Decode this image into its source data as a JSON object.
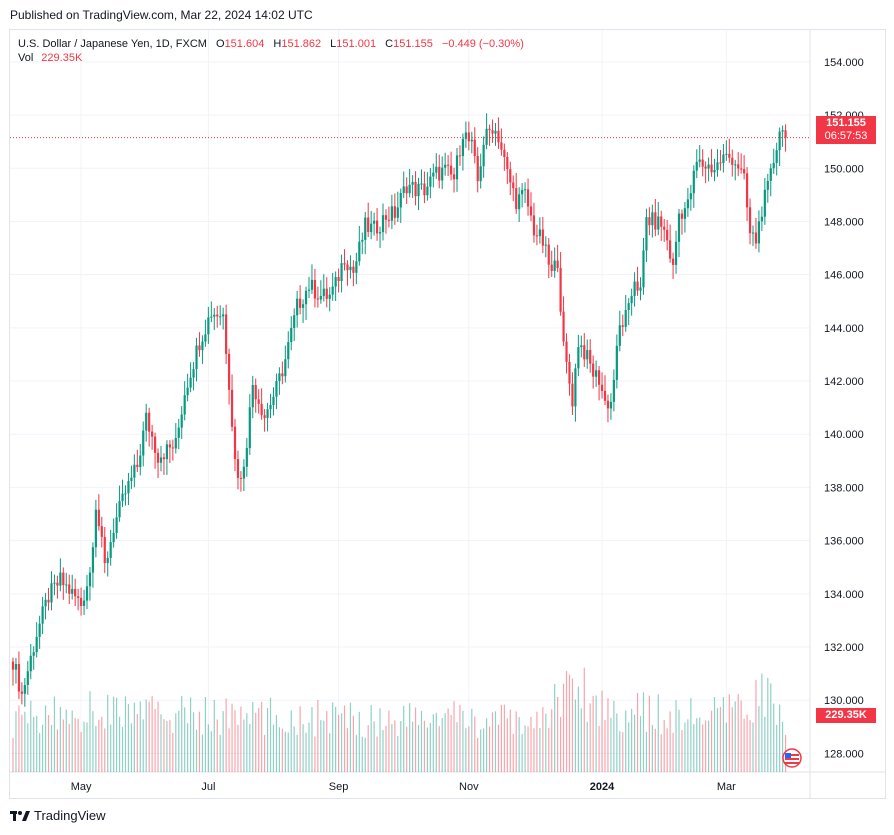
{
  "header": {
    "published": "Published on TradingView.com, Mar 22, 2024 14:02 UTC"
  },
  "legend": {
    "symbol": "U.S. Dollar / Japanese Yen, 1D, FXCM",
    "open_label": "O",
    "open": "151.604",
    "high_label": "H",
    "high": "151.862",
    "low_label": "L",
    "low": "151.001",
    "close_label": "C",
    "close": "151.155",
    "change": "−0.449 (−0.30%)",
    "vol_label": "Vol",
    "vol_value": "229.35K"
  },
  "price_badge": {
    "price": "151.155",
    "countdown": "06:57:53"
  },
  "volume_badge": "229.35K",
  "footer": {
    "brand": "TradingView"
  },
  "colors": {
    "up": "#089981",
    "down": "#f23645",
    "grid": "#f0f3fa",
    "axis_text": "#131722"
  },
  "chart_data": {
    "type": "candlestick",
    "title": "U.S. Dollar / Japanese Yen, 1D, FXCM",
    "ylim": [
      127.3,
      155.2
    ],
    "y_ticks": [
      "154.000",
      "152.000",
      "150.000",
      "148.000",
      "146.000",
      "144.000",
      "142.000",
      "140.000",
      "138.000",
      "136.000",
      "134.000",
      "132.000",
      "130.000",
      "128.000"
    ],
    "x_labels": [
      {
        "label": "May",
        "index": 23
      },
      {
        "label": "Jul",
        "index": 66
      },
      {
        "label": "Sep",
        "index": 110
      },
      {
        "label": "Nov",
        "index": 154
      },
      {
        "label": "2024",
        "index": 199,
        "bold": true
      },
      {
        "label": "Mar",
        "index": 241
      }
    ],
    "last_price": 151.155,
    "anchors": [
      [
        0,
        131.5
      ],
      [
        3,
        130.2
      ],
      [
        8,
        132.5
      ],
      [
        12,
        133.9
      ],
      [
        16,
        134.5
      ],
      [
        20,
        134.0
      ],
      [
        23,
        133.6
      ],
      [
        26,
        134.8
      ],
      [
        28,
        137.4
      ],
      [
        31,
        135.0
      ],
      [
        34,
        136.5
      ],
      [
        38,
        137.8
      ],
      [
        42,
        138.8
      ],
      [
        45,
        140.6
      ],
      [
        49,
        139.2
      ],
      [
        55,
        139.6
      ],
      [
        58,
        141.6
      ],
      [
        63,
        143.5
      ],
      [
        67,
        144.6
      ],
      [
        71,
        144.5
      ],
      [
        73,
        142.0
      ],
      [
        75,
        139.0
      ],
      [
        77,
        138.2
      ],
      [
        79,
        139.8
      ],
      [
        81,
        141.9
      ],
      [
        85,
        140.7
      ],
      [
        89,
        141.7
      ],
      [
        92,
        142.8
      ],
      [
        96,
        144.8
      ],
      [
        100,
        145.6
      ],
      [
        104,
        145.2
      ],
      [
        107,
        145.2
      ],
      [
        109,
        145.6
      ],
      [
        112,
        146.7
      ],
      [
        115,
        146.1
      ],
      [
        119,
        147.8
      ],
      [
        122,
        147.7
      ],
      [
        126,
        148.2
      ],
      [
        129,
        148.3
      ],
      [
        133,
        149.4
      ],
      [
        136,
        149.2
      ],
      [
        139,
        149.2
      ],
      [
        143,
        149.8
      ],
      [
        146,
        149.9
      ],
      [
        149,
        149.6
      ],
      [
        152,
        151.4
      ],
      [
        155,
        150.8
      ],
      [
        157,
        149.5
      ],
      [
        159,
        151.0
      ],
      [
        162,
        151.6
      ],
      [
        164,
        151.2
      ],
      [
        167,
        149.8
      ],
      [
        170,
        148.8
      ],
      [
        173,
        149.0
      ],
      [
        176,
        147.7
      ],
      [
        179,
        147.2
      ],
      [
        182,
        146.0
      ],
      [
        184,
        146.6
      ],
      [
        186,
        143.2
      ],
      [
        189,
        141.3
      ],
      [
        191,
        143.5
      ],
      [
        193,
        143.1
      ],
      [
        196,
        142.3
      ],
      [
        198,
        142.1
      ],
      [
        200,
        141.2
      ],
      [
        202,
        141.2
      ],
      [
        205,
        144.0
      ],
      [
        208,
        144.6
      ],
      [
        210,
        145.9
      ],
      [
        212,
        145.3
      ],
      [
        214,
        148.1
      ],
      [
        216,
        148.0
      ],
      [
        219,
        147.9
      ],
      [
        221,
        147.3
      ],
      [
        223,
        146.2
      ],
      [
        225,
        148.3
      ],
      [
        228,
        148.6
      ],
      [
        231,
        150.2
      ],
      [
        234,
        150.1
      ],
      [
        237,
        150.0
      ],
      [
        240,
        150.4
      ],
      [
        243,
        150.4
      ],
      [
        245,
        150.1
      ],
      [
        247,
        149.5
      ],
      [
        249,
        147.5
      ],
      [
        251,
        147.3
      ],
      [
        253,
        148.5
      ],
      [
        255,
        149.2
      ],
      [
        257,
        150.3
      ],
      [
        259,
        151.5
      ],
      [
        261,
        151.2
      ]
    ],
    "volume_anchors": [
      [
        0,
        100
      ],
      [
        30,
        118
      ],
      [
        60,
        108
      ],
      [
        90,
        104
      ],
      [
        120,
        100
      ],
      [
        150,
        102
      ],
      [
        160,
        95
      ],
      [
        180,
        96
      ],
      [
        185,
        160
      ],
      [
        190,
        165
      ],
      [
        200,
        120
      ],
      [
        220,
        108
      ],
      [
        240,
        106
      ],
      [
        248,
        125
      ],
      [
        253,
        150
      ],
      [
        256,
        140
      ],
      [
        261,
        72
      ]
    ]
  }
}
